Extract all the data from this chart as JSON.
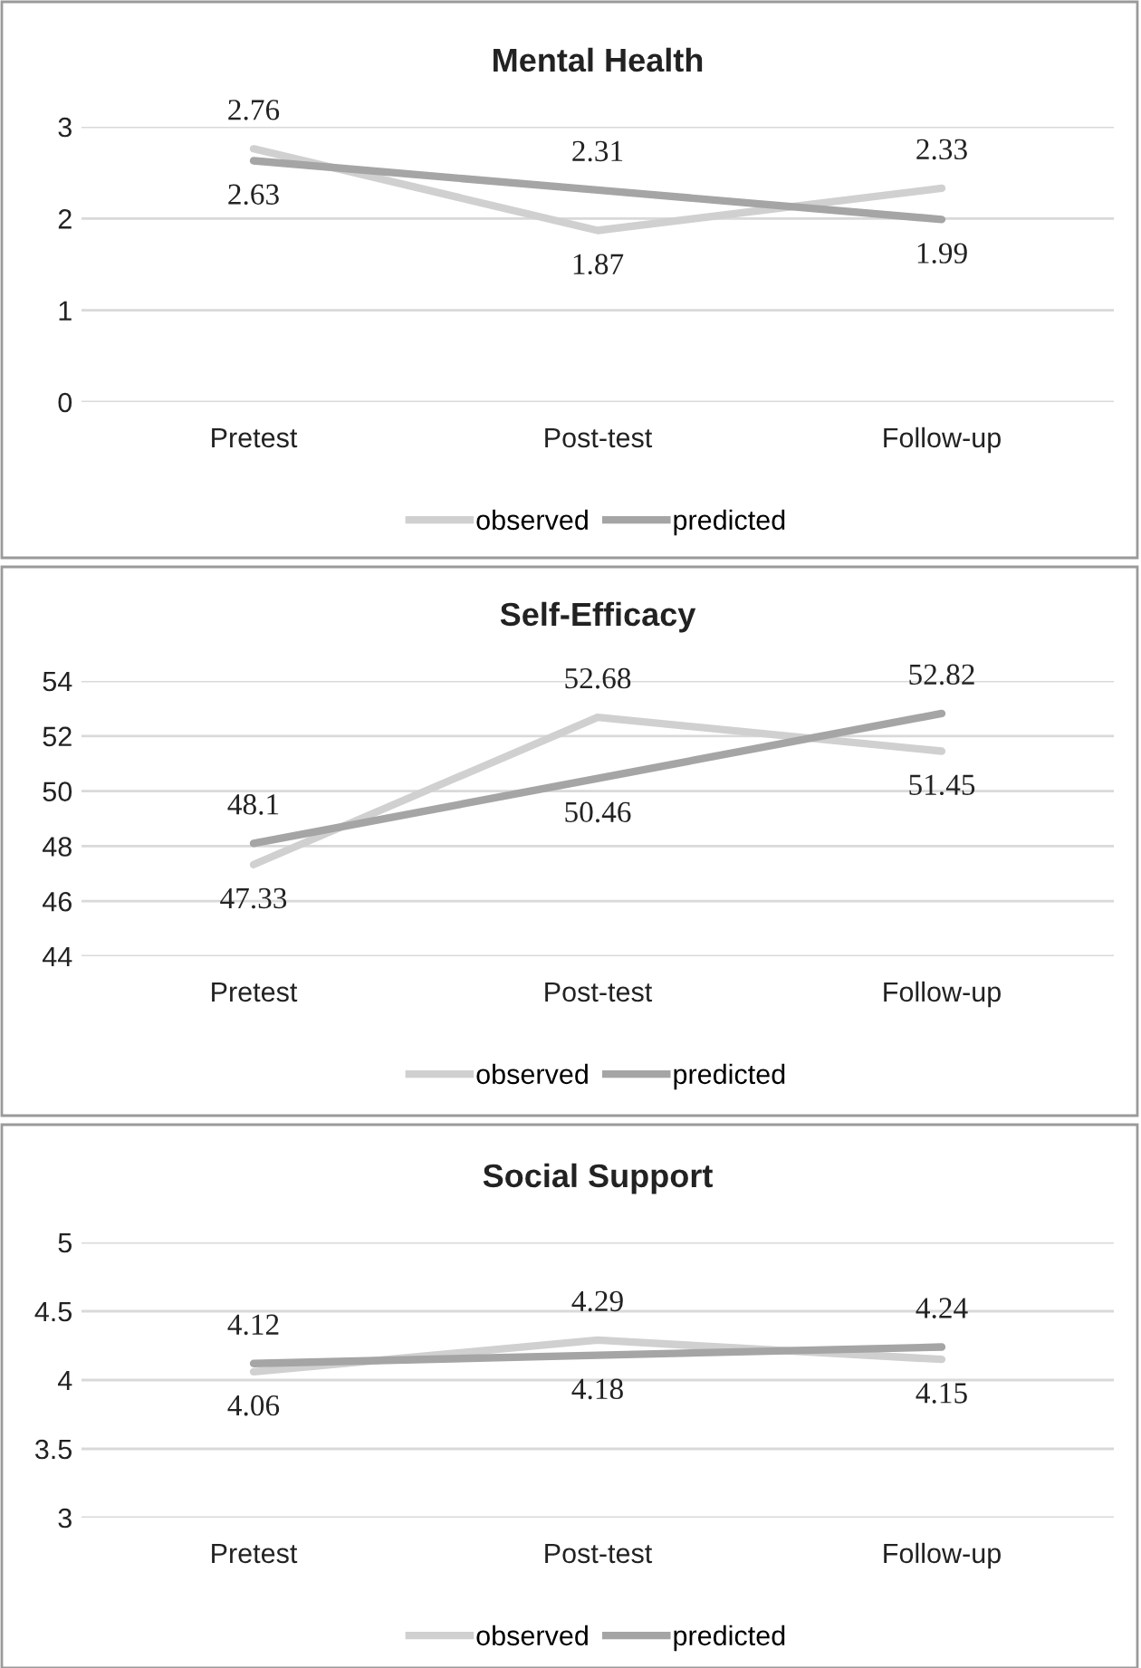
{
  "chart_data": [
    {
      "type": "line",
      "title": "Mental Health",
      "categories": [
        "Pretest",
        "Post-test",
        "Follow-up"
      ],
      "ylim": [
        0,
        3
      ],
      "yticks": [
        0,
        1,
        2,
        3
      ],
      "grid": "y",
      "legend": "bottom",
      "data_labels": true,
      "series": [
        {
          "name": "observed",
          "color": "#d0d0d0",
          "values": [
            2.76,
            1.87,
            2.33
          ]
        },
        {
          "name": "predicted",
          "color": "#a5a5a5",
          "values": [
            2.63,
            2.31,
            1.99
          ]
        }
      ]
    },
    {
      "type": "line",
      "title": "Self-Efficacy",
      "categories": [
        "Pretest",
        "Post-test",
        "Follow-up"
      ],
      "ylim": [
        44,
        54
      ],
      "yticks": [
        44,
        46,
        48,
        50,
        52,
        54
      ],
      "grid": "y",
      "legend": "bottom",
      "data_labels": true,
      "series": [
        {
          "name": "observed",
          "color": "#d0d0d0",
          "values": [
            47.33,
            52.68,
            51.45
          ]
        },
        {
          "name": "predicted",
          "color": "#a5a5a5",
          "values": [
            48.1,
            50.46,
            52.82
          ]
        }
      ]
    },
    {
      "type": "line",
      "title": "Social Support",
      "categories": [
        "Pretest",
        "Post-test",
        "Follow-up"
      ],
      "ylim": [
        3,
        5
      ],
      "yticks": [
        3,
        3.5,
        4,
        4.5,
        5
      ],
      "grid": "y",
      "legend": "bottom",
      "data_labels": true,
      "series": [
        {
          "name": "observed",
          "color": "#d0d0d0",
          "values": [
            4.06,
            4.29,
            4.15
          ]
        },
        {
          "name": "predicted",
          "color": "#a5a5a5",
          "values": [
            4.12,
            4.18,
            4.24
          ]
        }
      ]
    }
  ]
}
